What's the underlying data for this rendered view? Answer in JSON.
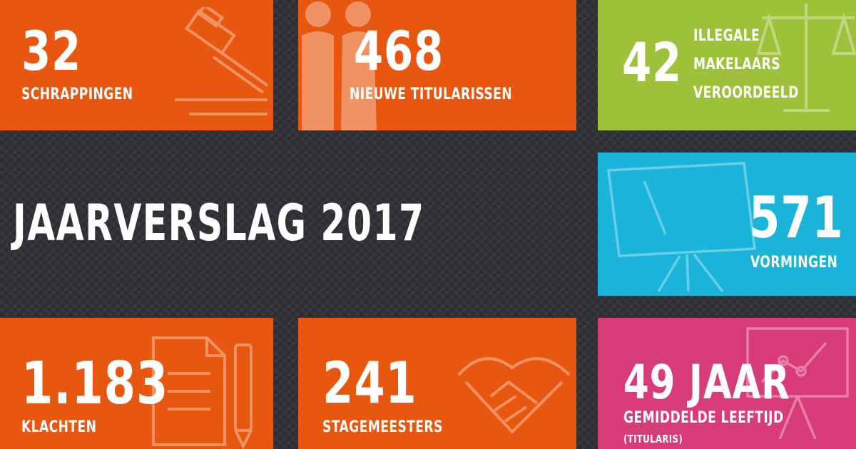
{
  "headline": "JAARVERSLAG 2017",
  "tiles": {
    "schrappingen": {
      "value": "32",
      "label": "SCHRAPPINGEN",
      "icon": "gavel-icon",
      "color": "#e8570f"
    },
    "titularissen": {
      "value": "468",
      "label": "NIEUWE TITULARISSEN",
      "icon": "people-icon",
      "color": "#e8570f"
    },
    "makelaars": {
      "value": "42",
      "label_lines": [
        "ILLEGALE",
        "MAKELAARS",
        "VEROORDEELD"
      ],
      "icon": "scales-icon",
      "color": "#9dc23a"
    },
    "vormingen": {
      "value": "571",
      "label": "VORMINGEN",
      "icon": "whiteboard-icon",
      "color": "#1ab3d9"
    },
    "klachten": {
      "value": "1.183",
      "label": "KLACHTEN",
      "icon": "document-icon",
      "color": "#e8570f"
    },
    "stagemeesters": {
      "value": "241",
      "label": "STAGEMEESTERS",
      "icon": "handshake-icon",
      "color": "#e8570f"
    },
    "leeftijd": {
      "value": "49 JAAR",
      "label": "GEMIDDELDE LEEFTIJD",
      "sublabel": "(TITULARIS)",
      "icon": "chart-icon",
      "color": "#d73c78"
    }
  }
}
